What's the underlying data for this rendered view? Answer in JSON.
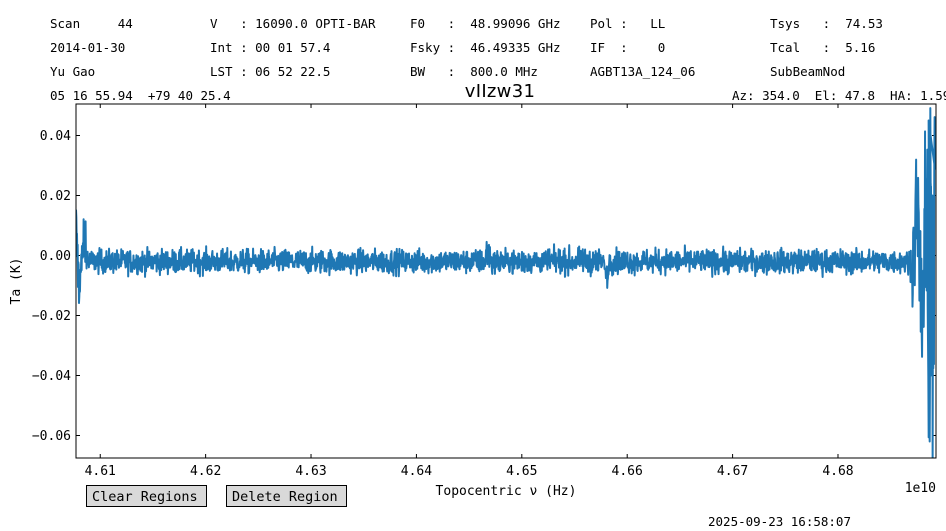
{
  "header": {
    "col1": [
      "Scan     44",
      "2014-01-30",
      "Yu Gao"
    ],
    "col2": [
      "V   : 16090.0 OPTI-BAR",
      "Int : 00 01 57.4",
      "LST : 06 52 22.5"
    ],
    "col3": [
      "F0   :  48.99096 GHz",
      "Fsky :  46.49335 GHz",
      "BW   :  800.0 MHz"
    ],
    "col4": [
      "Pol :   LL",
      "IF  :    0",
      "AGBT13A_124_06"
    ],
    "col5": [
      "Tsys   :  74.53",
      "Tcal   :  5.16",
      "SubBeamNod"
    ],
    "coords": "05 16 55.94  +79 40 25.4",
    "azel": "Az: 354.0  El: 47.8  HA: 1.59"
  },
  "chart_data": {
    "type": "line",
    "title": "vIIzw31",
    "xlabel": "Topocentric ν (Hz)",
    "ylabel": "Ta (K)",
    "x_offset_text": "1e10",
    "xlim": [
      4.6077,
      4.6893
    ],
    "ylim": [
      -0.0675,
      0.0505
    ],
    "xticks": [
      4.61,
      4.62,
      4.63,
      4.64,
      4.65,
      4.66,
      4.67,
      4.68
    ],
    "xtick_labels": [
      "4.61",
      "4.62",
      "4.63",
      "4.64",
      "4.65",
      "4.66",
      "4.67",
      "4.68"
    ],
    "yticks": [
      0.04,
      0.02,
      0.0,
      -0.02,
      -0.04,
      -0.06
    ],
    "ytick_labels": [
      "0.04",
      "0.02",
      "0.00",
      "−0.02",
      "−0.04",
      "−0.06"
    ],
    "grid": false,
    "series": [
      {
        "color": "#1f77b4",
        "noise_rms_K": 0.002,
        "baseline_K": -0.002,
        "x": [
          4.6077,
          4.608,
          4.6085,
          4.609,
          4.61,
          4.615,
          4.62,
          4.625,
          4.63,
          4.635,
          4.64,
          4.645,
          4.6468,
          4.65,
          4.655,
          4.658,
          4.66,
          4.665,
          4.67,
          4.675,
          4.68,
          4.685,
          4.687,
          4.6875,
          4.6878,
          4.6881,
          4.6884,
          4.6886,
          4.6888,
          4.689,
          4.6892
        ],
        "y": [
          0.012,
          -0.013,
          0.008,
          -0.004,
          -0.002,
          -0.002,
          -0.003,
          -0.003,
          -0.002,
          -0.002,
          -0.002,
          -0.002,
          0.005,
          -0.002,
          -0.002,
          -0.01,
          -0.002,
          -0.002,
          -0.003,
          -0.003,
          -0.003,
          -0.002,
          -0.005,
          0.022,
          -0.015,
          -0.03,
          0.045,
          -0.062,
          0.025,
          -0.04,
          0.015
        ]
      }
    ]
  },
  "buttons": {
    "clear": "Clear Regions",
    "delete": "Delete Region"
  },
  "timestamp": "2025-09-23 16:58:07"
}
